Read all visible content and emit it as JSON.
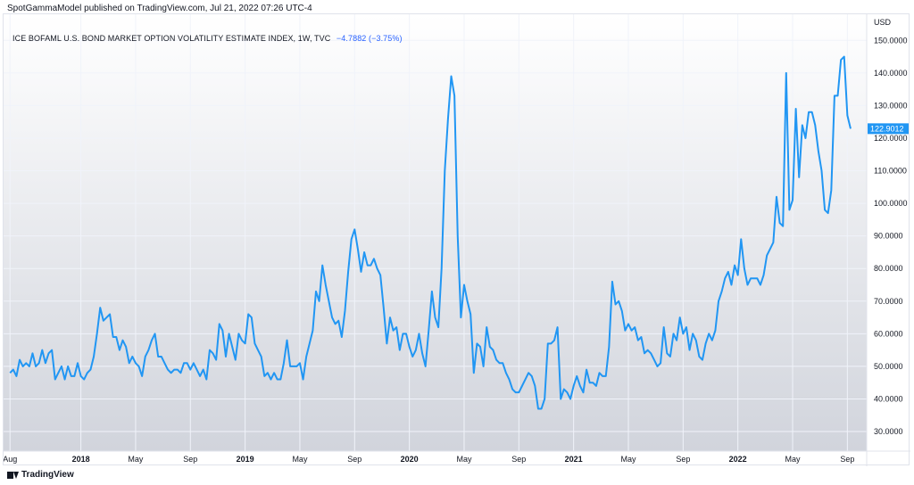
{
  "header": {
    "published_by": "SpotGammaModel published on TradingView.com, Jul 21, 2022 07:26 UTC-4"
  },
  "legend": {
    "symbol": "ICE BOFAML U.S. BOND MARKET OPTION VOLATILITY ESTIMATE INDEX, 1W, TVC",
    "change": "−4.7882 (−3.75%)"
  },
  "footer": {
    "brand": "TradingView"
  },
  "colors": {
    "line": "#2196f3",
    "area_top": "#ffffff",
    "area_bottom": "#d1d4dc",
    "grid": "#f0f3fa",
    "price_label": "#2196f3"
  },
  "chart_data": {
    "type": "line",
    "currency": "USD",
    "current_value_label": "122.9012",
    "current_value": 122.9012,
    "ylim": [
      24,
      158
    ],
    "y_ticks": [
      "30.0000",
      "40.0000",
      "50.0000",
      "60.0000",
      "70.0000",
      "80.0000",
      "90.0000",
      "100.0000",
      "110.0000",
      "120.0000",
      "130.0000",
      "140.0000",
      "150.0000"
    ],
    "x_ticks": [
      {
        "label": "Aug",
        "t": 0,
        "bold": false
      },
      {
        "label": "2018",
        "t": 22,
        "bold": true
      },
      {
        "label": "May",
        "t": 39,
        "bold": false
      },
      {
        "label": "Sep",
        "t": 56,
        "bold": false
      },
      {
        "label": "2019",
        "t": 73,
        "bold": true
      },
      {
        "label": "May",
        "t": 90,
        "bold": false
      },
      {
        "label": "Sep",
        "t": 107,
        "bold": false
      },
      {
        "label": "2020",
        "t": 124,
        "bold": true
      },
      {
        "label": "May",
        "t": 141,
        "bold": false
      },
      {
        "label": "Sep",
        "t": 158,
        "bold": false
      },
      {
        "label": "2021",
        "t": 175,
        "bold": true
      },
      {
        "label": "May",
        "t": 192,
        "bold": false
      },
      {
        "label": "Sep",
        "t": 209,
        "bold": false
      },
      {
        "label": "2022",
        "t": 226,
        "bold": true
      },
      {
        "label": "May",
        "t": 243,
        "bold": false
      },
      {
        "label": "Sep",
        "t": 260,
        "bold": false
      }
    ],
    "x_range": [
      -2,
      266
    ],
    "series": [
      {
        "values": [
          48,
          49,
          47,
          52,
          50,
          51,
          50,
          54,
          50,
          51,
          55,
          51,
          54,
          55,
          46,
          48,
          50,
          46,
          50,
          47,
          47,
          51,
          47,
          46,
          48,
          49,
          53,
          60,
          68,
          64,
          65,
          66,
          59,
          59,
          55,
          58,
          56,
          51,
          53,
          51,
          50,
          47,
          53,
          55,
          58,
          60,
          53,
          53,
          51,
          49,
          48,
          49,
          49,
          48,
          51,
          51,
          49,
          51,
          49,
          47,
          49,
          46,
          55,
          54,
          52,
          63,
          61,
          53,
          60,
          56,
          52,
          60,
          58,
          57,
          66,
          65,
          57,
          55,
          53,
          47,
          48,
          46,
          48,
          46,
          46,
          51,
          58,
          50,
          50,
          50,
          51,
          46,
          53,
          57,
          61,
          73,
          70,
          81,
          75,
          70,
          65,
          63,
          64,
          59,
          67,
          79,
          89,
          92,
          86,
          79,
          85,
          81,
          81,
          83,
          80,
          78,
          68,
          57,
          65,
          61,
          62,
          55,
          60,
          60,
          56,
          53,
          55,
          60,
          54,
          50,
          61,
          73,
          65,
          62,
          80,
          110,
          126,
          139,
          133,
          90,
          65,
          75,
          70,
          66,
          48,
          57,
          56,
          50,
          62,
          56,
          55,
          52,
          51,
          51,
          48,
          46,
          43,
          42,
          42,
          44,
          46,
          48,
          47,
          44,
          37,
          37,
          40,
          57,
          57,
          58,
          62,
          40,
          43,
          42,
          40,
          44,
          47,
          44,
          42,
          49,
          45,
          45,
          44,
          48,
          47,
          47,
          56,
          76,
          69,
          70,
          67,
          61,
          63,
          61,
          62,
          58,
          59,
          54,
          55,
          54,
          52,
          50,
          51,
          62,
          54,
          53,
          60,
          58,
          65,
          60,
          62,
          55,
          60,
          58,
          53,
          52,
          57,
          60,
          58,
          61,
          70,
          73,
          77,
          79,
          75,
          81,
          78,
          89,
          80,
          75,
          77,
          77,
          77,
          75,
          78,
          84,
          86,
          88,
          102,
          94,
          93,
          140,
          98,
          101,
          129,
          108,
          124,
          120,
          128,
          128,
          124,
          116,
          110,
          98,
          97,
          104,
          133,
          133,
          144,
          145,
          127,
          122.9
        ]
      }
    ]
  }
}
